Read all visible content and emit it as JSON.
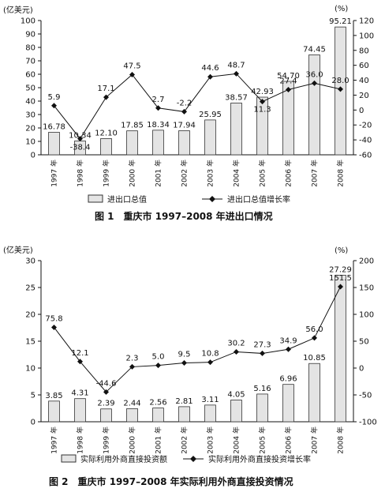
{
  "chart_data": [
    {
      "type": "bar",
      "caption": "图 1　重庆市 1997–2008 年进出口情况",
      "categories": [
        "1997 年",
        "1998 年",
        "1999 年",
        "2000 年",
        "2001 年",
        "2002 年",
        "2003 年",
        "2004 年",
        "2005 年",
        "2006 年",
        "2007 年",
        "2008 年"
      ],
      "left_unit": "(亿美元)",
      "right_unit": "(%)",
      "ylim_left": [
        0,
        100
      ],
      "left_ticks": [
        0,
        10,
        20,
        30,
        40,
        50,
        60,
        70,
        80,
        90,
        100
      ],
      "ylim_right": [
        -60,
        120
      ],
      "right_ticks": [
        -60,
        -40,
        -20,
        0,
        20,
        40,
        60,
        80,
        100,
        120
      ],
      "series": [
        {
          "name": "进出口总值",
          "kind": "bar",
          "axis": "left",
          "values": [
            16.78,
            10.34,
            12.1,
            17.85,
            18.34,
            17.94,
            25.95,
            38.57,
            42.93,
            54.7,
            74.45,
            95.21
          ],
          "labels": [
            "16.78",
            "10.34",
            "12.10",
            "17.85",
            "18.34",
            "17.94",
            "25.95",
            "38.57",
            "42.93",
            "54.70",
            "74.45",
            "95.21"
          ]
        },
        {
          "name": "进出口总值增长率",
          "kind": "line",
          "axis": "right",
          "values": [
            5.9,
            -38.4,
            17.1,
            47.5,
            2.7,
            -2.2,
            44.6,
            48.7,
            11.3,
            27.4,
            36.0,
            28.0
          ],
          "labels": [
            "5.9",
            "-38.4",
            "17.1",
            "47.5",
            "2.7",
            "-2.2",
            "44.6",
            "48.7",
            "11.3",
            "27.4",
            "36.0",
            "28.0"
          ]
        }
      ]
    },
    {
      "type": "bar",
      "caption": "图 2　重庆市 1997–2008 年实际利用外商直接投资情况",
      "categories": [
        "1997 年",
        "1998 年",
        "1999 年",
        "2000 年",
        "2001 年",
        "2002 年",
        "2003 年",
        "2004 年",
        "2005 年",
        "2006 年",
        "2007 年",
        "2008 年"
      ],
      "left_unit": "(亿美元)",
      "right_unit": "(%)",
      "ylim_left": [
        0,
        30
      ],
      "left_ticks": [
        0,
        5,
        10,
        15,
        20,
        25,
        30
      ],
      "ylim_right": [
        -100,
        200
      ],
      "right_ticks": [
        -100,
        -50,
        0,
        50,
        100,
        150,
        200
      ],
      "series": [
        {
          "name": "实际利用外商直接投资额",
          "kind": "bar",
          "axis": "left",
          "values": [
            3.85,
            4.31,
            2.39,
            2.44,
            2.56,
            2.81,
            3.11,
            4.05,
            5.16,
            6.96,
            10.85,
            27.29
          ],
          "labels": [
            "3.85",
            "4.31",
            "2.39",
            "2.44",
            "2.56",
            "2.81",
            "3.11",
            "4.05",
            "5.16",
            "6.96",
            "10.85",
            "27.29"
          ]
        },
        {
          "name": "实际利用外商直接投资增长率",
          "kind": "line",
          "axis": "right",
          "values": [
            75.8,
            12.1,
            -44.6,
            2.3,
            5.0,
            9.5,
            10.8,
            30.2,
            27.3,
            34.9,
            56.0,
            151.5
          ],
          "labels": [
            "75.8",
            "12.1",
            "-44.6",
            "2.3",
            "5.0",
            "9.5",
            "10.8",
            "30.2",
            "27.3",
            "34.9",
            "56.0",
            "151.5"
          ]
        }
      ]
    }
  ],
  "colors": {
    "bar_fill": "#e4e4e4",
    "bar_stroke": "#333333",
    "line": "#111111",
    "axis": "#111111"
  }
}
